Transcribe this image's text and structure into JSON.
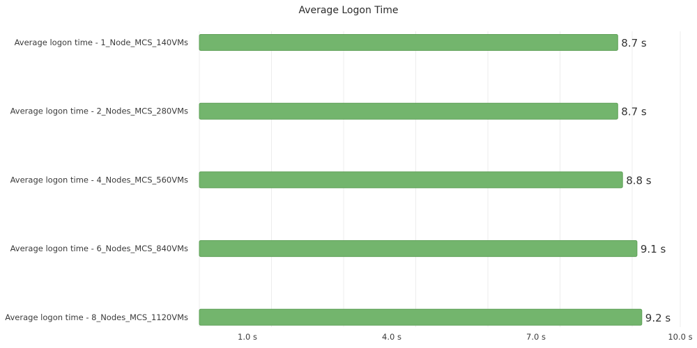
{
  "chart_data": {
    "type": "bar",
    "orientation": "horizontal",
    "title": "Average Logon Time",
    "xlabel": "",
    "ylabel": "",
    "categories": [
      "Average logon time - 1_Node_MCS_140VMs",
      "Average logon time - 2_Nodes_MCS_280VMs",
      "Average logon time - 4_Nodes_MCS_560VMs",
      "Average logon time - 6_Nodes_MCS_840VMs",
      "Average logon time - 8_Nodes_MCS_1120VMs"
    ],
    "values": [
      8.7,
      8.7,
      8.8,
      9.1,
      9.2
    ],
    "value_labels": [
      "8.7 s",
      "8.7 s",
      "8.8 s",
      "9.1 s",
      "9.2 s"
    ],
    "value_unit": "s",
    "xlim": [
      0,
      10
    ],
    "x_ticks": [
      1.0,
      4.0,
      7.0,
      10.0
    ],
    "x_tick_labels": [
      "1.0 s",
      "4.0 s",
      "7.0 s",
      "10.0 s"
    ],
    "grid": true,
    "legend": "none",
    "colors": {
      "bar_fill": "#73b56d",
      "bar_stroke": "#5fa058",
      "grid": "#ececec",
      "text": "#3a3a3a"
    }
  }
}
